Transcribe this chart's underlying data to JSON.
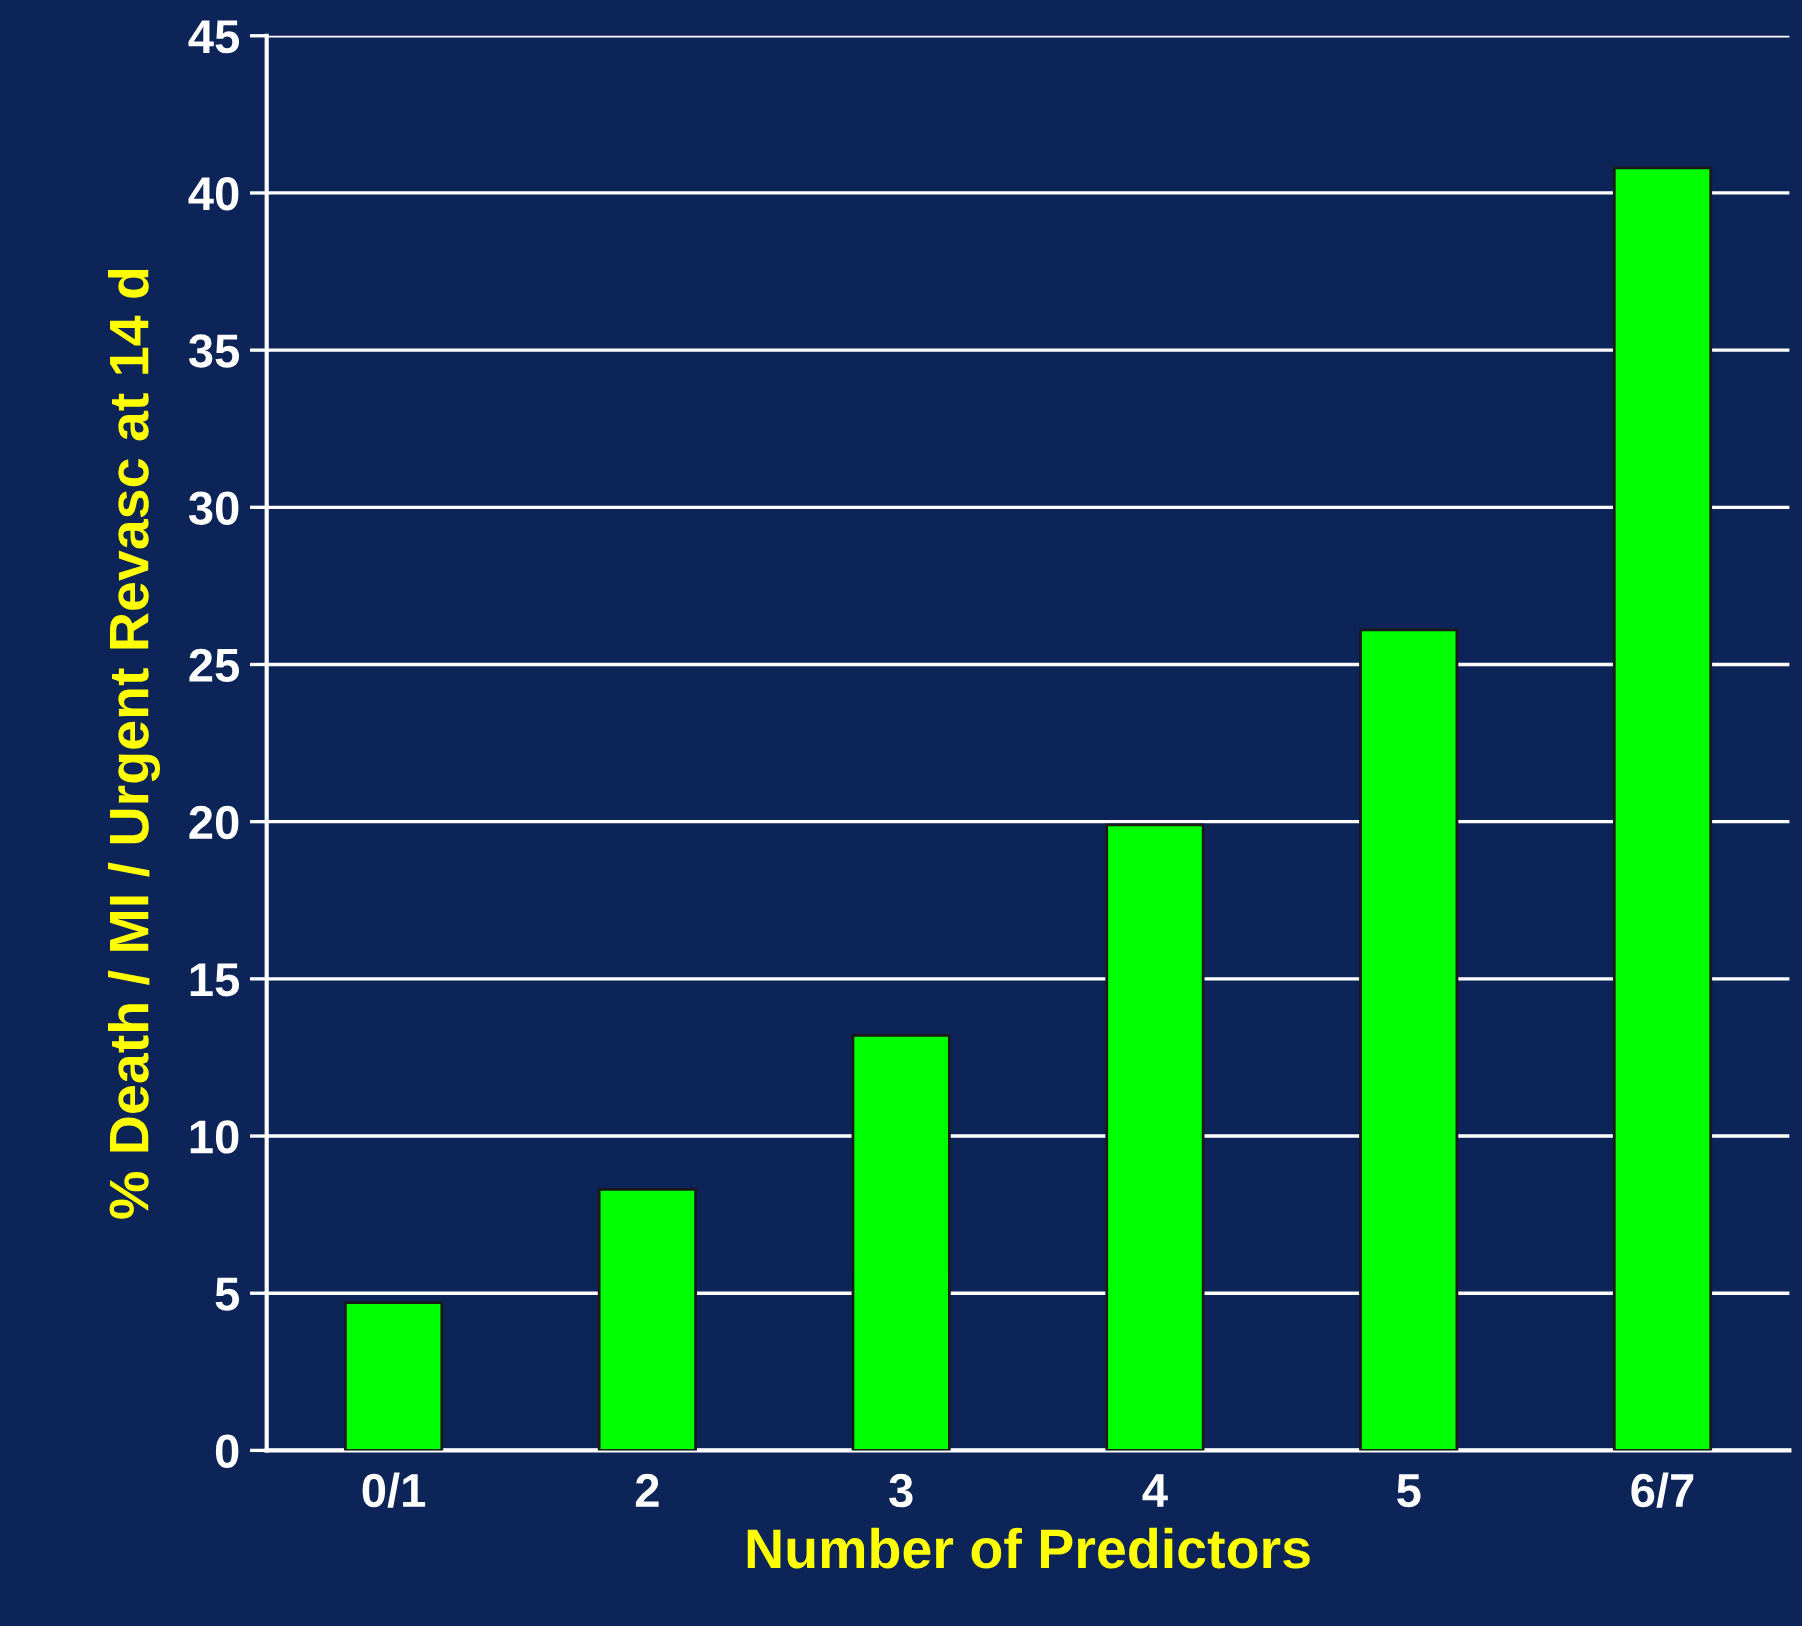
{
  "chart_data": {
    "type": "bar",
    "xlabel": "Number of Predictors",
    "ylabel": "% Death / MI / Urgent Revasc at 14 d",
    "categories": [
      "0/1",
      "2",
      "3",
      "4",
      "5",
      "6/7"
    ],
    "values": [
      4.7,
      8.3,
      13.2,
      19.9,
      26.1,
      40.8
    ],
    "color": "#00ff00",
    "ylim": [
      0,
      45
    ],
    "yticks": [
      0,
      5,
      10,
      15,
      20,
      25,
      30,
      35,
      40,
      45
    ],
    "grid": "y"
  }
}
